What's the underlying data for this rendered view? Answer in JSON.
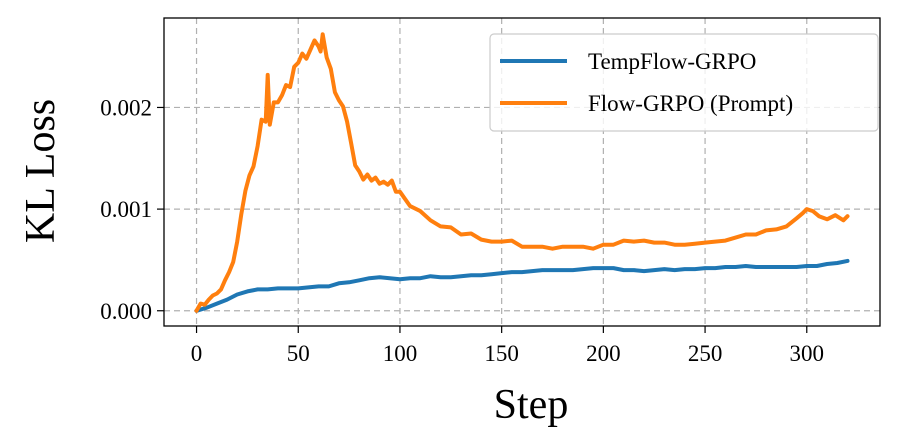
{
  "chart_data": {
    "type": "line",
    "title": "",
    "xlabel": "Step",
    "ylabel": "KL Loss",
    "xlim": [
      -16,
      336
    ],
    "ylim": [
      -0.00015,
      0.00288
    ],
    "xticks": [
      0,
      50,
      100,
      150,
      200,
      250,
      300
    ],
    "xtick_labels": [
      "0",
      "50",
      "100",
      "150",
      "200",
      "250",
      "300"
    ],
    "yticks": [
      0.0,
      0.001,
      0.002
    ],
    "ytick_labels": [
      "0.000",
      "0.001",
      "0.002"
    ],
    "grid": true,
    "legend_position": "top-right",
    "series": [
      {
        "name": "TempFlow-GRPO",
        "color": "#1f77b4",
        "x": [
          0,
          5,
          10,
          15,
          20,
          25,
          30,
          35,
          40,
          45,
          50,
          55,
          60,
          65,
          70,
          75,
          80,
          85,
          90,
          95,
          100,
          105,
          110,
          115,
          120,
          125,
          130,
          135,
          140,
          145,
          150,
          155,
          160,
          165,
          170,
          175,
          180,
          185,
          190,
          195,
          200,
          205,
          210,
          215,
          220,
          225,
          230,
          235,
          240,
          245,
          250,
          255,
          260,
          265,
          270,
          275,
          280,
          285,
          290,
          295,
          300,
          305,
          310,
          315,
          320
        ],
        "y": [
          0.0,
          3e-05,
          7e-05,
          0.00011,
          0.00016,
          0.00019,
          0.00021,
          0.00021,
          0.00022,
          0.00022,
          0.00022,
          0.00023,
          0.00024,
          0.00024,
          0.00027,
          0.00028,
          0.0003,
          0.00032,
          0.00033,
          0.00032,
          0.00031,
          0.00032,
          0.00032,
          0.00034,
          0.00033,
          0.00033,
          0.00034,
          0.00035,
          0.00035,
          0.00036,
          0.00037,
          0.00038,
          0.00038,
          0.00039,
          0.0004,
          0.0004,
          0.0004,
          0.0004,
          0.00041,
          0.00042,
          0.00042,
          0.00042,
          0.0004,
          0.0004,
          0.00039,
          0.0004,
          0.00041,
          0.0004,
          0.00041,
          0.00041,
          0.00042,
          0.00042,
          0.00043,
          0.00043,
          0.00044,
          0.00043,
          0.00043,
          0.00043,
          0.00043,
          0.00043,
          0.00044,
          0.00044,
          0.00046,
          0.00047,
          0.00049
        ]
      },
      {
        "name": "Flow-GRPO (Prompt)",
        "color": "#ff7f0e",
        "x": [
          0,
          2,
          4,
          6,
          8,
          10,
          12,
          14,
          16,
          18,
          20,
          22,
          24,
          26,
          28,
          30,
          32,
          34,
          35,
          36,
          38,
          40,
          42,
          44,
          46,
          48,
          50,
          52,
          54,
          56,
          58,
          60,
          61,
          62,
          64,
          66,
          68,
          70,
          72,
          74,
          76,
          78,
          80,
          82,
          84,
          86,
          88,
          90,
          92,
          94,
          96,
          98,
          100,
          105,
          110,
          115,
          120,
          125,
          130,
          135,
          140,
          145,
          150,
          155,
          160,
          165,
          170,
          175,
          180,
          185,
          190,
          195,
          200,
          205,
          210,
          215,
          220,
          225,
          230,
          235,
          240,
          245,
          250,
          255,
          260,
          265,
          270,
          275,
          280,
          285,
          290,
          295,
          298,
          300,
          303,
          306,
          310,
          314,
          318,
          320
        ],
        "y": [
          0.0,
          7e-05,
          6e-05,
          0.00011,
          0.00015,
          0.00017,
          0.00021,
          0.0003,
          0.00038,
          0.00048,
          0.00068,
          0.00095,
          0.00118,
          0.00133,
          0.00142,
          0.00162,
          0.00188,
          0.00186,
          0.00232,
          0.00183,
          0.00205,
          0.00205,
          0.00212,
          0.00222,
          0.0022,
          0.0024,
          0.00244,
          0.00253,
          0.00248,
          0.00257,
          0.00266,
          0.0026,
          0.00255,
          0.00272,
          0.00249,
          0.00238,
          0.00215,
          0.00207,
          0.00201,
          0.00186,
          0.00165,
          0.00143,
          0.00137,
          0.00129,
          0.00134,
          0.00128,
          0.00131,
          0.00125,
          0.00127,
          0.00124,
          0.00128,
          0.00117,
          0.00117,
          0.00103,
          0.00098,
          0.00089,
          0.00083,
          0.00082,
          0.00075,
          0.00076,
          0.0007,
          0.00068,
          0.00068,
          0.00069,
          0.00063,
          0.00063,
          0.00063,
          0.00061,
          0.00063,
          0.00063,
          0.00063,
          0.00061,
          0.00065,
          0.00065,
          0.00069,
          0.00068,
          0.00069,
          0.00067,
          0.00067,
          0.00065,
          0.00065,
          0.00066,
          0.00067,
          0.00068,
          0.00069,
          0.00072,
          0.00075,
          0.00075,
          0.00079,
          0.0008,
          0.00083,
          0.00091,
          0.00096,
          0.001,
          0.00098,
          0.00093,
          0.0009,
          0.00094,
          0.00089,
          0.00093
        ]
      }
    ]
  }
}
